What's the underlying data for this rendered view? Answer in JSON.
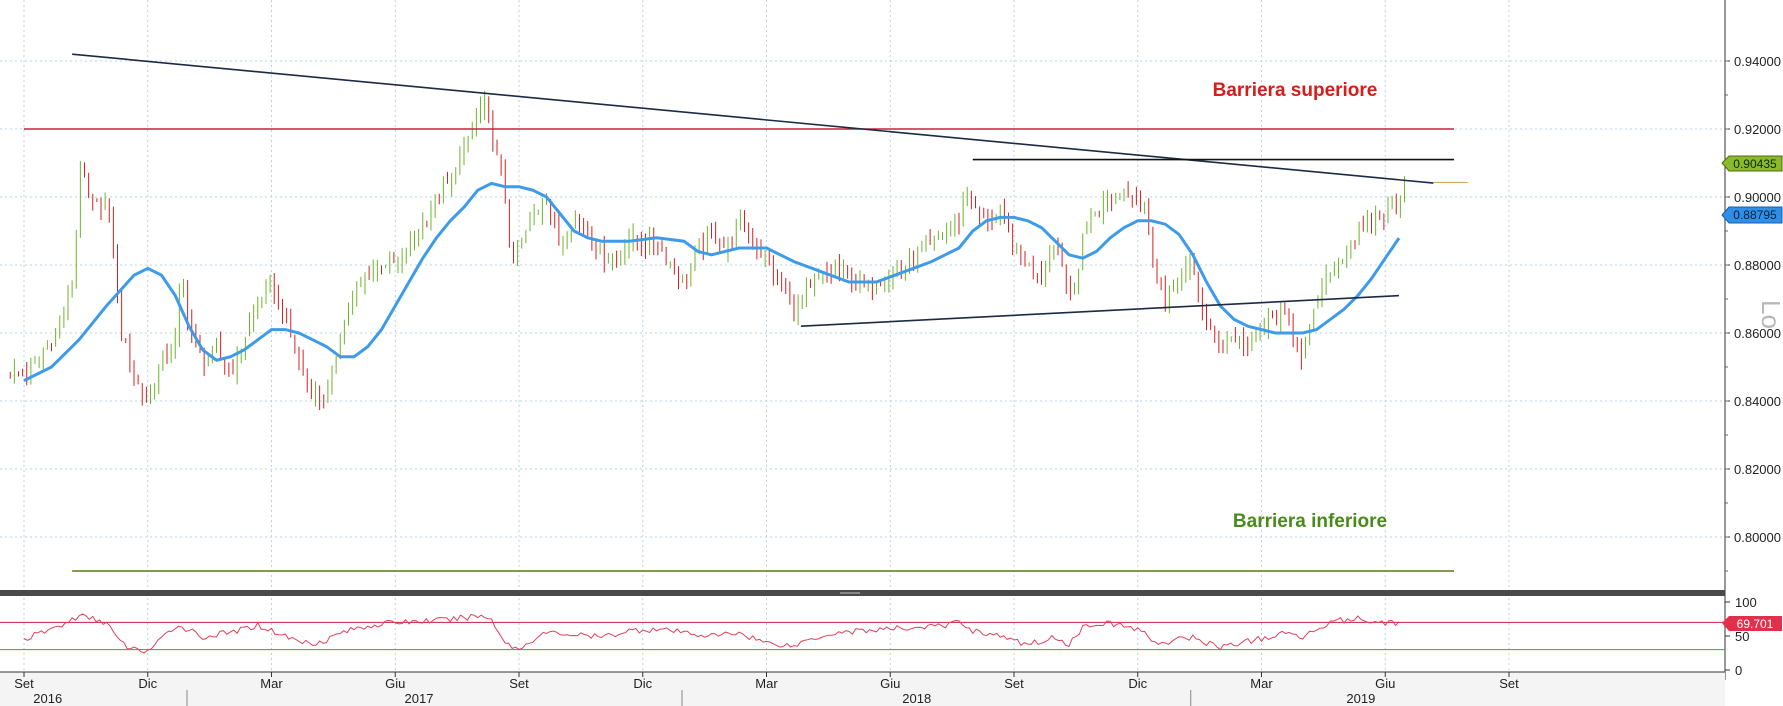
{
  "chart_data": [
    {
      "type": "candlestick",
      "ylim": [
        0.785,
        0.955
      ],
      "yticks": [
        "0.94000",
        "0.92000",
        "0.90000",
        "0.88000",
        "0.86000",
        "0.84000",
        "0.82000",
        "0.80000"
      ],
      "grid": true,
      "colors": {
        "up": "#6fb52c",
        "down": "#d42020",
        "ma": "#3d9be9",
        "upper": "#cc1f3e",
        "lower": "#5a7a14",
        "trend": "#1b2a45",
        "last_price": "#8ab92a",
        "ma_badge": "#2f8ee6"
      },
      "annotations": [
        {
          "text": "Barriera superiore",
          "price": 0.92,
          "color": "#d81b1b"
        },
        {
          "text": "Barriera inferiore",
          "price": 0.79,
          "color": "#4a8a1c"
        }
      ],
      "last_price": {
        "label": "0.90435",
        "price": 0.90435
      },
      "ma_last": {
        "label": "0.88795",
        "price": 0.88795
      },
      "side_label": "Lo",
      "price_path": [
        [
          0,
          0.848
        ],
        [
          1,
          0.852
        ],
        [
          2,
          0.858
        ],
        [
          3,
          0.866
        ],
        [
          3.7,
          0.88
        ],
        [
          4,
          0.911
        ],
        [
          4.3,
          0.905
        ],
        [
          5,
          0.897
        ],
        [
          6,
          0.899
        ],
        [
          6.5,
          0.884
        ],
        [
          7,
          0.862
        ],
        [
          8,
          0.848
        ],
        [
          9,
          0.839
        ],
        [
          10,
          0.852
        ],
        [
          11,
          0.858
        ],
        [
          11.5,
          0.878
        ],
        [
          12,
          0.862
        ],
        [
          13,
          0.852
        ],
        [
          14,
          0.855
        ],
        [
          15,
          0.848
        ],
        [
          16,
          0.858
        ],
        [
          17,
          0.869
        ],
        [
          18,
          0.874
        ],
        [
          19,
          0.864
        ],
        [
          20,
          0.851
        ],
        [
          21,
          0.842
        ],
        [
          22,
          0.84
        ],
        [
          22.5,
          0.85
        ],
        [
          23,
          0.86
        ],
        [
          24,
          0.871
        ],
        [
          25,
          0.877
        ],
        [
          26,
          0.881
        ],
        [
          27,
          0.88
        ],
        [
          28,
          0.885
        ],
        [
          29,
          0.892
        ],
        [
          30,
          0.899
        ],
        [
          31,
          0.905
        ],
        [
          32,
          0.914
        ],
        [
          33,
          0.925
        ],
        [
          33.5,
          0.927
        ],
        [
          34,
          0.92
        ],
        [
          35,
          0.9
        ],
        [
          35.5,
          0.88
        ],
        [
          36,
          0.885
        ],
        [
          37,
          0.894
        ],
        [
          38,
          0.9
        ],
        [
          39,
          0.885
        ],
        [
          40,
          0.894
        ],
        [
          41,
          0.89
        ],
        [
          42,
          0.883
        ],
        [
          43,
          0.882
        ],
        [
          44,
          0.888
        ],
        [
          45,
          0.886
        ],
        [
          46,
          0.887
        ],
        [
          47,
          0.881
        ],
        [
          48,
          0.875
        ],
        [
          49,
          0.884
        ],
        [
          50,
          0.889
        ],
        [
          51,
          0.885
        ],
        [
          52,
          0.893
        ],
        [
          53,
          0.887
        ],
        [
          54,
          0.881
        ],
        [
          55,
          0.874
        ],
        [
          56,
          0.868
        ],
        [
          57,
          0.872
        ],
        [
          58,
          0.876
        ],
        [
          59,
          0.879
        ],
        [
          60,
          0.877
        ],
        [
          61,
          0.873
        ],
        [
          62,
          0.875
        ],
        [
          63,
          0.877
        ],
        [
          64,
          0.879
        ],
        [
          65,
          0.883
        ],
        [
          66,
          0.886
        ],
        [
          67,
          0.89
        ],
        [
          68,
          0.893
        ],
        [
          68.5,
          0.903
        ],
        [
          69,
          0.897
        ],
        [
          70,
          0.893
        ],
        [
          71,
          0.895
        ],
        [
          72,
          0.885
        ],
        [
          73,
          0.88
        ],
        [
          74,
          0.878
        ],
        [
          75,
          0.886
        ],
        [
          76,
          0.874
        ],
        [
          76.5,
          0.871
        ],
        [
          77,
          0.89
        ],
        [
          78,
          0.896
        ],
        [
          79,
          0.9
        ],
        [
          80,
          0.902
        ],
        [
          81,
          0.9
        ],
        [
          81.5,
          0.898
        ],
        [
          82,
          0.883
        ],
        [
          83,
          0.869
        ],
        [
          84,
          0.877
        ],
        [
          85,
          0.879
        ],
        [
          86,
          0.863
        ],
        [
          87,
          0.857
        ],
        [
          88,
          0.859
        ],
        [
          89,
          0.856
        ],
        [
          90,
          0.861
        ],
        [
          91,
          0.865
        ],
        [
          92,
          0.864
        ],
        [
          92.5,
          0.858
        ],
        [
          93,
          0.853
        ],
        [
          94,
          0.868
        ],
        [
          95,
          0.878
        ],
        [
          96,
          0.883
        ],
        [
          97,
          0.888
        ],
        [
          98,
          0.893
        ],
        [
          99,
          0.895
        ],
        [
          100,
          0.9
        ],
        [
          100.5,
          0.9035
        ]
      ],
      "ma_path": [
        [
          0,
          0.846
        ],
        [
          2,
          0.85
        ],
        [
          4,
          0.858
        ],
        [
          6,
          0.868
        ],
        [
          8,
          0.877
        ],
        [
          9,
          0.879
        ],
        [
          10,
          0.877
        ],
        [
          11,
          0.871
        ],
        [
          12,
          0.862
        ],
        [
          13,
          0.855
        ],
        [
          14,
          0.852
        ],
        [
          15,
          0.853
        ],
        [
          16,
          0.855
        ],
        [
          17,
          0.858
        ],
        [
          18,
          0.861
        ],
        [
          19,
          0.861
        ],
        [
          20,
          0.86
        ],
        [
          21,
          0.858
        ],
        [
          22,
          0.856
        ],
        [
          23,
          0.853
        ],
        [
          24,
          0.853
        ],
        [
          25,
          0.856
        ],
        [
          26,
          0.861
        ],
        [
          27,
          0.868
        ],
        [
          28,
          0.875
        ],
        [
          29,
          0.882
        ],
        [
          30,
          0.888
        ],
        [
          31,
          0.893
        ],
        [
          32,
          0.897
        ],
        [
          33,
          0.902
        ],
        [
          34,
          0.904
        ],
        [
          35,
          0.903
        ],
        [
          36,
          0.903
        ],
        [
          37,
          0.902
        ],
        [
          38,
          0.9
        ],
        [
          39,
          0.895
        ],
        [
          40,
          0.89
        ],
        [
          41,
          0.888
        ],
        [
          42,
          0.887
        ],
        [
          44,
          0.887
        ],
        [
          46,
          0.888
        ],
        [
          48,
          0.887
        ],
        [
          49,
          0.884
        ],
        [
          50,
          0.883
        ],
        [
          52,
          0.885
        ],
        [
          54,
          0.885
        ],
        [
          56,
          0.881
        ],
        [
          58,
          0.878
        ],
        [
          60,
          0.875
        ],
        [
          62,
          0.875
        ],
        [
          64,
          0.878
        ],
        [
          66,
          0.881
        ],
        [
          68,
          0.885
        ],
        [
          69,
          0.89
        ],
        [
          70,
          0.893
        ],
        [
          71,
          0.894
        ],
        [
          72,
          0.894
        ],
        [
          73,
          0.893
        ],
        [
          74,
          0.891
        ],
        [
          75,
          0.887
        ],
        [
          76,
          0.883
        ],
        [
          77,
          0.882
        ],
        [
          78,
          0.884
        ],
        [
          79,
          0.888
        ],
        [
          80,
          0.891
        ],
        [
          81,
          0.893
        ],
        [
          82,
          0.893
        ],
        [
          83,
          0.892
        ],
        [
          84,
          0.889
        ],
        [
          85,
          0.883
        ],
        [
          86,
          0.875
        ],
        [
          87,
          0.868
        ],
        [
          88,
          0.864
        ],
        [
          89,
          0.862
        ],
        [
          90,
          0.861
        ],
        [
          91,
          0.86
        ],
        [
          92,
          0.86
        ],
        [
          93,
          0.86
        ],
        [
          94,
          0.861
        ],
        [
          95,
          0.864
        ],
        [
          96,
          0.867
        ],
        [
          97,
          0.871
        ],
        [
          98,
          0.876
        ],
        [
          99,
          0.882
        ],
        [
          100,
          0.8879
        ]
      ],
      "lines": [
        {
          "name": "upper-barrier-line",
          "type": "hline",
          "price": 0.92,
          "from": 0,
          "to": 104
        },
        {
          "name": "lower-barrier-line",
          "type": "hline",
          "price": 0.79,
          "from": 3.5,
          "to": 104
        },
        {
          "name": "descending-trend-line",
          "type": "segment",
          "p1": [
            3.5,
            0.942
          ],
          "p2": [
            102.5,
            0.9041
          ]
        },
        {
          "name": "rising-support-line",
          "type": "segment",
          "p1": [
            56.5,
            0.862
          ],
          "p2": [
            100,
            0.871
          ]
        },
        {
          "name": "flat-resistance-line",
          "type": "segment",
          "p1": [
            69,
            0.911
          ],
          "p2": [
            104,
            0.911
          ]
        },
        {
          "name": "last-price-line",
          "type": "segment",
          "p1": [
            102.5,
            0.9043
          ],
          "p2": [
            105,
            0.9043
          ]
        }
      ]
    },
    {
      "type": "line",
      "name": "rsi",
      "ylim": [
        0,
        100
      ],
      "yticks": [
        "100",
        "50",
        "0"
      ],
      "levels": [
        70,
        30
      ],
      "last": {
        "label": "69.701",
        "value": 69.701
      },
      "colors": {
        "line": "#e0405a",
        "upper": "#cc1f3e",
        "lower": "#3aa43a",
        "badge": "#e0304a"
      },
      "rsi_path": [
        [
          0,
          45
        ],
        [
          3,
          68
        ],
        [
          4,
          80
        ],
        [
          6,
          70
        ],
        [
          7,
          40
        ],
        [
          8,
          30
        ],
        [
          9,
          28
        ],
        [
          10,
          45
        ],
        [
          11,
          65
        ],
        [
          12,
          60
        ],
        [
          13,
          48
        ],
        [
          14,
          52
        ],
        [
          15,
          55
        ],
        [
          16,
          60
        ],
        [
          17,
          66
        ],
        [
          18,
          58
        ],
        [
          19,
          50
        ],
        [
          20,
          42
        ],
        [
          21,
          40
        ],
        [
          22,
          44
        ],
        [
          23,
          55
        ],
        [
          25,
          65
        ],
        [
          27,
          70
        ],
        [
          29,
          72
        ],
        [
          31,
          74
        ],
        [
          33,
          80
        ],
        [
          34,
          75
        ],
        [
          35,
          40
        ],
        [
          36,
          30
        ],
        [
          37,
          45
        ],
        [
          38,
          55
        ],
        [
          40,
          52
        ],
        [
          42,
          48
        ],
        [
          44,
          58
        ],
        [
          46,
          60
        ],
        [
          48,
          55
        ],
        [
          50,
          50
        ],
        [
          52,
          55
        ],
        [
          54,
          40
        ],
        [
          55,
          38
        ],
        [
          56,
          35
        ],
        [
          57,
          45
        ],
        [
          59,
          55
        ],
        [
          61,
          58
        ],
        [
          63,
          60
        ],
        [
          65,
          63
        ],
        [
          67,
          65
        ],
        [
          68,
          72
        ],
        [
          69,
          58
        ],
        [
          71,
          50
        ],
        [
          72,
          42
        ],
        [
          73,
          38
        ],
        [
          75,
          48
        ],
        [
          76,
          38
        ],
        [
          77,
          62
        ],
        [
          78,
          70
        ],
        [
          80,
          65
        ],
        [
          81,
          60
        ],
        [
          82,
          45
        ],
        [
          83,
          38
        ],
        [
          84,
          45
        ],
        [
          85,
          48
        ],
        [
          86,
          40
        ],
        [
          87,
          34
        ],
        [
          88,
          38
        ],
        [
          89,
          42
        ],
        [
          91,
          50
        ],
        [
          92,
          55
        ],
        [
          93,
          48
        ],
        [
          94,
          60
        ],
        [
          95,
          72
        ],
        [
          97,
          75
        ],
        [
          99,
          70
        ],
        [
          100,
          69.7
        ]
      ]
    }
  ],
  "x_axis": {
    "months": [
      {
        "label": "Set",
        "t": 0
      },
      {
        "label": "Dic",
        "t": 9
      },
      {
        "label": "Mar",
        "t": 18
      },
      {
        "label": "Giu",
        "t": 27
      },
      {
        "label": "Set",
        "t": 36
      },
      {
        "label": "Dic",
        "t": 45
      },
      {
        "label": "Mar",
        "t": 54
      },
      {
        "label": "Giu",
        "t": 63
      },
      {
        "label": "Set",
        "t": 72
      },
      {
        "label": "Dic",
        "t": 81
      },
      {
        "label": "Mar",
        "t": 90
      },
      {
        "label": "Giu",
        "t": 99
      },
      {
        "label": "Set",
        "t": 108
      }
    ],
    "years": [
      {
        "label": "2016",
        "t": 1
      },
      {
        "label": "2017",
        "t": 28
      },
      {
        "label": "2018",
        "t": 64.2
      },
      {
        "label": "2019",
        "t": 96.5
      }
    ]
  }
}
